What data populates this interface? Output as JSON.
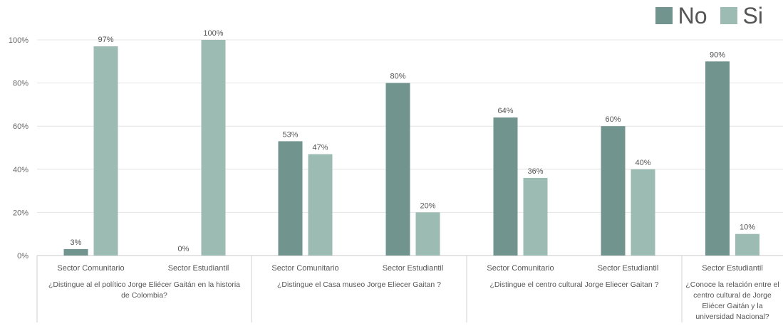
{
  "chart_data": {
    "type": "bar",
    "ylim": [
      0,
      100
    ],
    "yticks": [
      "0%",
      "20%",
      "40%",
      "60%",
      "80%",
      "100%"
    ],
    "grid": true,
    "legend_position": "top-right",
    "series": [
      {
        "name": "No",
        "color": "#72948f"
      },
      {
        "name": "Si",
        "color": "#9bbbb3"
      }
    ],
    "groups": [
      {
        "question": "¿Distingue al el político Jorge Eliécer Gaitán en la historia de Colombia?",
        "question_lines": [
          "¿Distingue al el político Jorge Eliécer Gaitán en la historia",
          "de Colombia?"
        ],
        "categories": [
          {
            "label": "Sector Comunitario",
            "no": 3,
            "si": 97,
            "no_label": "3%",
            "si_label": "97%"
          },
          {
            "label": "Sector Estudiantil",
            "no": 0,
            "si": 100,
            "no_label": "0%",
            "si_label": "100%"
          }
        ]
      },
      {
        "question": "¿Distingue el Casa museo Jorge Eliecer Gaitan ?",
        "question_lines": [
          "¿Distingue el Casa museo Jorge Eliecer Gaitan ?"
        ],
        "categories": [
          {
            "label": "Sector Comunitario",
            "no": 53,
            "si": 47,
            "no_label": "53%",
            "si_label": "47%"
          },
          {
            "label": "Sector Estudiantil",
            "no": 80,
            "si": 20,
            "no_label": "80%",
            "si_label": "20%"
          }
        ]
      },
      {
        "question": "¿Distingue el centro cultural Jorge Eliecer Gaitan ?",
        "question_lines": [
          "¿Distingue el centro cultural Jorge Eliecer Gaitan ?"
        ],
        "categories": [
          {
            "label": "Sector Comunitario",
            "no": 64,
            "si": 36,
            "no_label": "64%",
            "si_label": "36%"
          },
          {
            "label": "Sector Estudiantil",
            "no": 60,
            "si": 40,
            "no_label": "60%",
            "si_label": "40%"
          }
        ]
      },
      {
        "question": "¿Conoce la relación entre el centro cultural de Jorge Eliécer Gaitán y la universidad Nacional?",
        "question_lines": [
          "¿Conoce la relación entre el",
          "centro cultural de Jorge",
          "Eliécer Gaitán y la",
          "universidad Nacional?"
        ],
        "categories": [
          {
            "label": "Sector Estudiantil",
            "no": 90,
            "si": 10,
            "no_label": "90%",
            "si_label": "10%"
          }
        ]
      }
    ]
  }
}
